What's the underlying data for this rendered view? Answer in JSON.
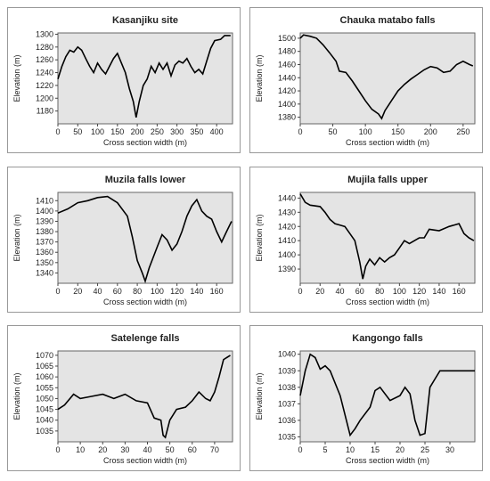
{
  "chart_data": [
    {
      "type": "line",
      "title": "Kasanjiku site",
      "xlabel": "Cross section width (m)",
      "ylabel": "Elevation (m)",
      "color": "#000000",
      "x": [
        0,
        10,
        20,
        30,
        40,
        50,
        60,
        70,
        80,
        90,
        100,
        110,
        120,
        130,
        140,
        150,
        160,
        170,
        180,
        190,
        197,
        205,
        215,
        225,
        235,
        245,
        255,
        265,
        275,
        285,
        295,
        305,
        315,
        325,
        335,
        345,
        355,
        365,
        375,
        385,
        395,
        410,
        420,
        435
      ],
      "values": [
        1230,
        1250,
        1265,
        1275,
        1272,
        1280,
        1275,
        1262,
        1250,
        1240,
        1255,
        1245,
        1238,
        1250,
        1262,
        1270,
        1255,
        1240,
        1215,
        1195,
        1170,
        1195,
        1220,
        1230,
        1250,
        1240,
        1255,
        1245,
        1255,
        1235,
        1252,
        1258,
        1255,
        1262,
        1250,
        1240,
        1245,
        1238,
        1258,
        1278,
        1290,
        1292,
        1298,
        1298
      ],
      "xlim": [
        0,
        440
      ],
      "xticks": [
        0,
        50,
        100,
        150,
        200,
        250,
        300,
        350,
        400
      ],
      "ylim": [
        1160,
        1302
      ],
      "yticks": [
        1180,
        1200,
        1220,
        1240,
        1260,
        1280,
        1300
      ]
    },
    {
      "type": "line",
      "title": "Chauka matabo falls",
      "xlabel": "Cross section width (m)",
      "ylabel": "Elevation (m)",
      "color": "#000000",
      "x": [
        0,
        5,
        15,
        25,
        35,
        45,
        55,
        60,
        70,
        80,
        90,
        100,
        110,
        120,
        125,
        130,
        140,
        150,
        160,
        170,
        180,
        190,
        200,
        210,
        220,
        230,
        240,
        250,
        260,
        265
      ],
      "values": [
        1500,
        1505,
        1503,
        1500,
        1490,
        1478,
        1465,
        1450,
        1448,
        1435,
        1420,
        1405,
        1392,
        1385,
        1378,
        1390,
        1405,
        1420,
        1430,
        1438,
        1445,
        1452,
        1457,
        1455,
        1448,
        1450,
        1460,
        1465,
        1460,
        1458
      ],
      "xlim": [
        0,
        268
      ],
      "xticks": [
        0,
        50,
        100,
        150,
        200,
        250
      ],
      "ylim": [
        1370,
        1508
      ],
      "yticks": [
        1380,
        1400,
        1420,
        1440,
        1460,
        1480,
        1500
      ]
    },
    {
      "type": "line",
      "title": "Muzila falls lower",
      "xlabel": "Cross section width (m)",
      "ylabel": "Elevation (m)",
      "color": "#000000",
      "x": [
        0,
        10,
        20,
        30,
        40,
        50,
        60,
        70,
        75,
        80,
        85,
        88,
        92,
        100,
        105,
        110,
        115,
        120,
        125,
        130,
        135,
        140,
        145,
        150,
        155,
        160,
        165,
        170,
        175
      ],
      "values": [
        1398,
        1402,
        1408,
        1410,
        1413,
        1414,
        1408,
        1395,
        1375,
        1352,
        1340,
        1332,
        1345,
        1365,
        1377,
        1372,
        1362,
        1368,
        1380,
        1395,
        1405,
        1411,
        1400,
        1395,
        1392,
        1380,
        1370,
        1380,
        1390
      ],
      "xlim": [
        0,
        176
      ],
      "xticks": [
        0,
        20,
        40,
        60,
        80,
        100,
        120,
        140,
        160
      ],
      "ylim": [
        1330,
        1418
      ],
      "yticks": [
        1340,
        1350,
        1360,
        1370,
        1380,
        1390,
        1400,
        1410
      ]
    },
    {
      "type": "line",
      "title": "Mujila falls upper",
      "xlabel": "Cross section width (m)",
      "ylabel": "Elevation (m)",
      "color": "#000000",
      "x": [
        0,
        5,
        10,
        20,
        25,
        30,
        35,
        45,
        50,
        55,
        60,
        63,
        66,
        70,
        75,
        80,
        85,
        90,
        95,
        100,
        105,
        110,
        120,
        125,
        130,
        140,
        150,
        160,
        165,
        170,
        175
      ],
      "values": [
        1443,
        1437,
        1435,
        1434,
        1430,
        1425,
        1422,
        1420,
        1415,
        1410,
        1395,
        1383,
        1392,
        1397,
        1393,
        1398,
        1395,
        1398,
        1400,
        1405,
        1410,
        1408,
        1412,
        1412,
        1418,
        1417,
        1420,
        1422,
        1415,
        1412,
        1410
      ],
      "xlim": [
        0,
        176
      ],
      "xticks": [
        0,
        20,
        40,
        60,
        80,
        100,
        120,
        140,
        160
      ],
      "ylim": [
        1380,
        1444
      ],
      "yticks": [
        1390,
        1400,
        1410,
        1420,
        1430,
        1440
      ]
    },
    {
      "type": "line",
      "title": "Satelenge falls",
      "xlabel": "Cross section width (m)",
      "ylabel": "Elevation (m)",
      "color": "#000000",
      "x": [
        0,
        3,
        7,
        10,
        15,
        20,
        25,
        30,
        35,
        40,
        43,
        46,
        47,
        48,
        50,
        53,
        57,
        60,
        63,
        66,
        68,
        70,
        72,
        74,
        77
      ],
      "values": [
        1045,
        1047,
        1052,
        1050,
        1051,
        1052,
        1050,
        1052,
        1049,
        1048,
        1041,
        1040,
        1033,
        1032,
        1040,
        1045,
        1046,
        1049,
        1053,
        1050,
        1049,
        1053,
        1060,
        1068,
        1070
      ],
      "xlim": [
        0,
        78
      ],
      "xticks": [
        0,
        10,
        20,
        30,
        40,
        50,
        60,
        70
      ],
      "ylim": [
        1030,
        1072
      ],
      "yticks": [
        1035,
        1040,
        1045,
        1050,
        1055,
        1060,
        1065,
        1070
      ]
    },
    {
      "type": "line",
      "title": "Kangongo falls",
      "xlabel": "Cross section width (m)",
      "ylabel": "Elevation (m)",
      "color": "#000000",
      "x": [
        0,
        1,
        2,
        3,
        4,
        5,
        6,
        8,
        10,
        11,
        12,
        14,
        15,
        16,
        18,
        20,
        21,
        22,
        23,
        24,
        25,
        26,
        27,
        28,
        35
      ],
      "values": [
        1037.5,
        1039,
        1040,
        1039.8,
        1039.1,
        1039.3,
        1039,
        1037.5,
        1035.1,
        1035.5,
        1036,
        1036.8,
        1037.8,
        1038,
        1037.2,
        1037.5,
        1038,
        1037.6,
        1036,
        1035.1,
        1035.2,
        1038,
        1038.5,
        1039,
        1039
      ],
      "xlim": [
        0,
        35
      ],
      "xticks": [
        0,
        5,
        10,
        15,
        20,
        25,
        30
      ],
      "ylim": [
        1034.7,
        1040.2
      ],
      "yticks": [
        1035,
        1036,
        1037,
        1038,
        1039,
        1040
      ]
    }
  ]
}
